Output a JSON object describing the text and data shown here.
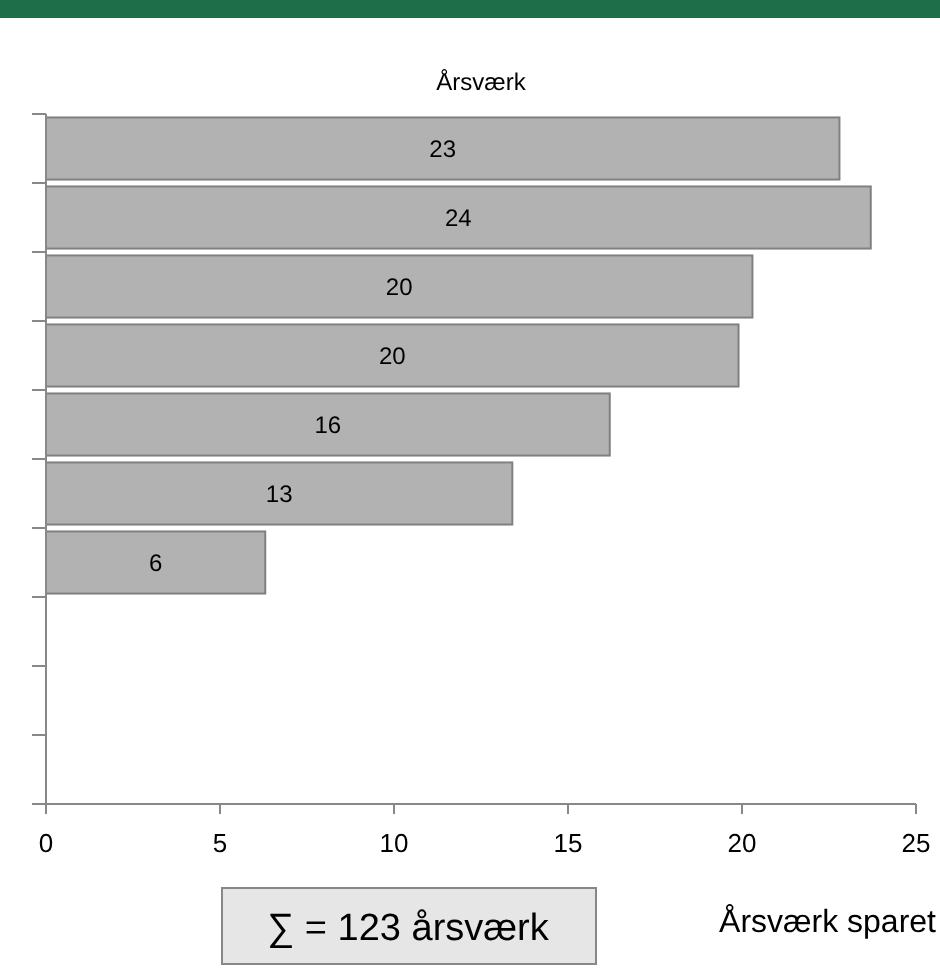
{
  "chart_data": {
    "type": "bar",
    "orientation": "horizontal",
    "title": "Årsværk",
    "xlabel": "Årsværk sparet",
    "categories": [
      null,
      null,
      null,
      null,
      null,
      null,
      null,
      null,
      null,
      null
    ],
    "values": [
      22.8,
      23.7,
      20.3,
      19.9,
      16.2,
      13.4,
      6.3,
      null,
      null,
      null
    ],
    "value_labels": [
      "23",
      "24",
      "20",
      "20",
      "16",
      "13",
      "6",
      null,
      null,
      null
    ],
    "color": "#b2b2b2",
    "xlim": [
      0,
      25
    ],
    "xticks": [
      0,
      5,
      10,
      15,
      20,
      25
    ],
    "grid": false,
    "annotations": [
      "∑ = 123 årsværk"
    ]
  }
}
